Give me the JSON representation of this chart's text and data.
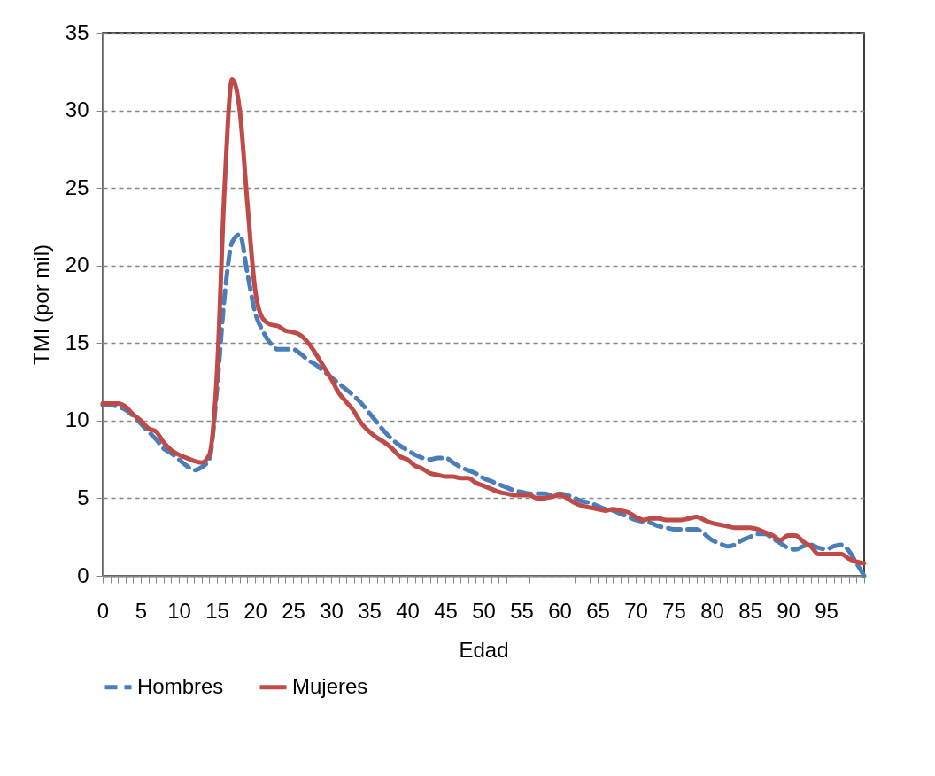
{
  "chart_data": {
    "type": "line",
    "xlabel": "Edad",
    "ylabel": "TMI (por mil)",
    "x": [
      0,
      1,
      2,
      3,
      4,
      5,
      6,
      7,
      8,
      9,
      10,
      11,
      12,
      13,
      14,
      15,
      16,
      17,
      18,
      19,
      20,
      21,
      22,
      23,
      24,
      25,
      26,
      27,
      28,
      29,
      30,
      31,
      32,
      33,
      34,
      35,
      36,
      37,
      38,
      39,
      40,
      41,
      42,
      43,
      44,
      45,
      46,
      47,
      48,
      49,
      50,
      51,
      52,
      53,
      54,
      55,
      56,
      57,
      58,
      59,
      60,
      61,
      62,
      63,
      64,
      65,
      66,
      67,
      68,
      69,
      70,
      71,
      72,
      73,
      74,
      75,
      76,
      77,
      78,
      79,
      80,
      81,
      82,
      83,
      84,
      85,
      86,
      87,
      88,
      89,
      90,
      91,
      92,
      93,
      94,
      95,
      96,
      97,
      98,
      99,
      100
    ],
    "series": [
      {
        "name": "Hombres",
        "color": "#4a7ebb",
        "line_style": "dashed",
        "values": [
          11.0,
          11.0,
          10.9,
          10.7,
          10.3,
          9.8,
          9.3,
          8.8,
          8.2,
          7.9,
          7.5,
          7.1,
          6.8,
          7.0,
          7.5,
          12,
          18,
          21.5,
          22,
          19.5,
          17.0,
          15.8,
          15.0,
          14.6,
          14.6,
          14.6,
          14.3,
          13.9,
          13.6,
          13.2,
          12.8,
          12.4,
          12.0,
          11.6,
          11.1,
          10.5,
          9.9,
          9.3,
          8.8,
          8.4,
          8.1,
          7.8,
          7.6,
          7.5,
          7.6,
          7.6,
          7.3,
          7.0,
          6.8,
          6.6,
          6.3,
          6.1,
          5.9,
          5.7,
          5.5,
          5.4,
          5.3,
          5.3,
          5.3,
          5.2,
          5.3,
          5.2,
          5.0,
          4.8,
          4.7,
          4.5,
          4.3,
          4.2,
          4.0,
          3.8,
          3.6,
          3.5,
          3.4,
          3.2,
          3.1,
          3.0,
          3.0,
          3.0,
          3.0,
          2.7,
          2.3,
          2.1,
          1.9,
          2.0,
          2.3,
          2.5,
          2.7,
          2.7,
          2.4,
          2.1,
          1.8,
          1.7,
          1.9,
          2.0,
          1.8,
          1.7,
          1.9,
          2.0,
          1.6,
          0.8,
          0
        ]
      },
      {
        "name": "Mujeres",
        "color": "#be4b48",
        "line_style": "solid",
        "values": [
          11.1,
          11.1,
          11.1,
          10.9,
          10.4,
          10.0,
          9.5,
          9.3,
          8.6,
          8.1,
          7.8,
          7.6,
          7.4,
          7.3,
          7.8,
          13,
          25,
          32,
          30,
          24,
          18.5,
          16.6,
          16.2,
          16.1,
          15.8,
          15.7,
          15.5,
          15.0,
          14.3,
          13.5,
          12.7,
          11.8,
          11.2,
          10.6,
          9.8,
          9.3,
          8.9,
          8.6,
          8.2,
          7.7,
          7.5,
          7.1,
          6.9,
          6.6,
          6.5,
          6.4,
          6.4,
          6.3,
          6.3,
          6.0,
          5.8,
          5.6,
          5.4,
          5.3,
          5.2,
          5.2,
          5.2,
          5.0,
          5.0,
          5.1,
          5.2,
          5.0,
          4.7,
          4.5,
          4.4,
          4.3,
          4.2,
          4.3,
          4.2,
          4.1,
          3.8,
          3.6,
          3.7,
          3.7,
          3.6,
          3.6,
          3.6,
          3.7,
          3.8,
          3.6,
          3.4,
          3.3,
          3.2,
          3.1,
          3.1,
          3.1,
          3.0,
          2.8,
          2.6,
          2.3,
          2.6,
          2.6,
          2.2,
          1.9,
          1.4,
          1.4,
          1.4,
          1.4,
          1.1,
          0.9,
          0.8
        ]
      }
    ],
    "xlim": [
      0,
      100
    ],
    "xticks": [
      0,
      {
        "value": 1,
        "label": null
      },
      {
        "value": 2,
        "label": null
      },
      {
        "value": 3,
        "label": null
      },
      {
        "value": 4,
        "label": null
      },
      5,
      {
        "value": 6,
        "label": null
      },
      {
        "value": 7,
        "label": null
      },
      {
        "value": 8,
        "label": null
      },
      {
        "value": 9,
        "label": null
      },
      10,
      {
        "value": 11,
        "label": null
      },
      {
        "value": 12,
        "label": null
      },
      {
        "value": 13,
        "label": null
      },
      {
        "value": 14,
        "label": null
      },
      15,
      {
        "value": 16,
        "label": null
      },
      {
        "value": 17,
        "label": null
      },
      {
        "value": 18,
        "label": null
      },
      {
        "value": 19,
        "label": null
      },
      20,
      {
        "value": 21,
        "label": null
      },
      {
        "value": 22,
        "label": null
      },
      {
        "value": 23,
        "label": null
      },
      {
        "value": 24,
        "label": null
      },
      25,
      {
        "value": 26,
        "label": null
      },
      {
        "value": 27,
        "label": null
      },
      {
        "value": 28,
        "label": null
      },
      {
        "value": 29,
        "label": null
      },
      30,
      {
        "value": 31,
        "label": null
      },
      {
        "value": 32,
        "label": null
      },
      {
        "value": 33,
        "label": null
      },
      {
        "value": 34,
        "label": null
      },
      35,
      {
        "value": 36,
        "label": null
      },
      {
        "value": 37,
        "label": null
      },
      {
        "value": 38,
        "label": null
      },
      {
        "value": 39,
        "label": null
      },
      40,
      {
        "value": 41,
        "label": null
      },
      {
        "value": 42,
        "label": null
      },
      {
        "value": 43,
        "label": null
      },
      {
        "value": 44,
        "label": null
      },
      45,
      {
        "value": 46,
        "label": null
      },
      {
        "value": 47,
        "label": null
      },
      {
        "value": 48,
        "label": null
      },
      {
        "value": 49,
        "label": null
      },
      50,
      {
        "value": 51,
        "label": null
      },
      {
        "value": 52,
        "label": null
      },
      {
        "value": 53,
        "label": null
      },
      {
        "value": 54,
        "label": null
      },
      55,
      {
        "value": 56,
        "label": null
      },
      {
        "value": 57,
        "label": null
      },
      {
        "value": 58,
        "label": null
      },
      {
        "value": 59,
        "label": null
      },
      60,
      {
        "value": 61,
        "label": null
      },
      {
        "value": 62,
        "label": null
      },
      {
        "value": 63,
        "label": null
      },
      {
        "value": 64,
        "label": null
      },
      65,
      {
        "value": 66,
        "label": null
      },
      {
        "value": 67,
        "label": null
      },
      {
        "value": 68,
        "label": null
      },
      {
        "value": 69,
        "label": null
      },
      70,
      {
        "value": 71,
        "label": null
      },
      {
        "value": 72,
        "label": null
      },
      {
        "value": 73,
        "label": null
      },
      {
        "value": 74,
        "label": null
      },
      75,
      {
        "value": 76,
        "label": null
      },
      {
        "value": 77,
        "label": null
      },
      {
        "value": 78,
        "label": null
      },
      {
        "value": 79,
        "label": null
      },
      80,
      {
        "value": 81,
        "label": null
      },
      {
        "value": 82,
        "label": null
      },
      {
        "value": 83,
        "label": null
      },
      {
        "value": 84,
        "label": null
      },
      85,
      {
        "value": 86,
        "label": null
      },
      {
        "value": 87,
        "label": null
      },
      {
        "value": 88,
        "label": null
      },
      {
        "value": 89,
        "label": null
      },
      90,
      {
        "value": 91,
        "label": null
      },
      {
        "value": 92,
        "label": null
      },
      {
        "value": 93,
        "label": null
      },
      {
        "value": 94,
        "label": null
      },
      95,
      {
        "value": 96,
        "label": null
      },
      {
        "value": 97,
        "label": null
      },
      {
        "value": 98,
        "label": null
      },
      {
        "value": 99,
        "label": null
      },
      {
        "value": 100,
        "label": null
      }
    ],
    "ylim": [
      0,
      35
    ],
    "yticks": [
      0,
      5,
      10,
      15,
      20,
      25,
      30,
      35
    ],
    "grid": "y",
    "legend": "bottom",
    "marker": "none"
  }
}
